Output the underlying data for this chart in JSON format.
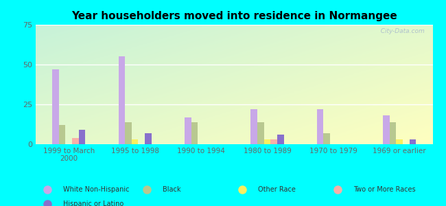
{
  "title": "Year householders moved into residence in Normangee",
  "background_color": "#00FFFF",
  "plot_bg": "#d4f5e8",
  "categories": [
    "1999 to March\n2000",
    "1995 to 1998",
    "1990 to 1994",
    "1980 to 1989",
    "1970 to 1979",
    "1969 or earlier"
  ],
  "series": {
    "White Non-Hispanic": {
      "values": [
        47,
        55,
        17,
        22,
        22,
        18
      ],
      "color": "#c8a8e8"
    },
    "Black": {
      "values": [
        12,
        14,
        14,
        14,
        7,
        14
      ],
      "color": "#b8c890"
    },
    "Other Race": {
      "values": [
        0,
        3,
        0,
        3,
        0,
        3
      ],
      "color": "#f8f060"
    },
    "Two or More Races": {
      "values": [
        4,
        0,
        0,
        3,
        0,
        0
      ],
      "color": "#f8b0a8"
    },
    "Hispanic or Latino": {
      "values": [
        9,
        7,
        0,
        6,
        0,
        3
      ],
      "color": "#8870cc"
    }
  },
  "ylim": [
    0,
    75
  ],
  "yticks": [
    0,
    25,
    50,
    75
  ],
  "watermark": "  City-Data.com",
  "legend_order": [
    "White Non-Hispanic",
    "Black",
    "Other Race",
    "Two or More Races",
    "Hispanic or Latino"
  ]
}
